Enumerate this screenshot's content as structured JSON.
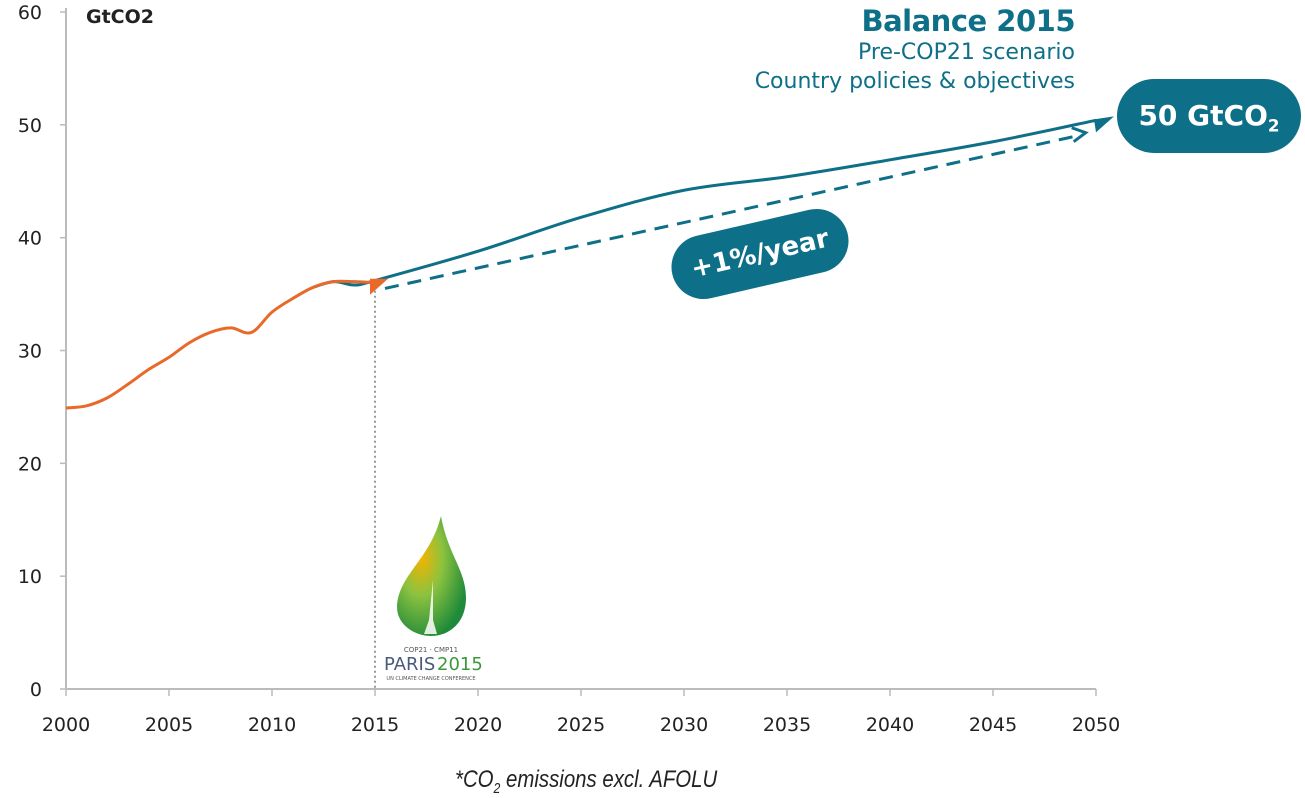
{
  "chart_data": {
    "type": "line",
    "ylabel": "GtCO2",
    "ylim": [
      0,
      60
    ],
    "xlim": [
      2000,
      2050
    ],
    "y_ticks": [
      "0",
      "10",
      "20",
      "30",
      "40",
      "50",
      "60"
    ],
    "x_ticks": [
      "2000",
      "2005",
      "2010",
      "2015",
      "2020",
      "2025",
      "2030",
      "2035",
      "2040",
      "2045",
      "2050"
    ],
    "grid": false,
    "series": [
      {
        "kind": "historical",
        "color": "#e8692a",
        "x": [
          2000,
          2001,
          2002,
          2003,
          2004,
          2005,
          2006,
          2007,
          2008,
          2009,
          2010,
          2011,
          2012,
          2013,
          2014,
          2015
        ],
        "y": [
          24.9,
          25.1,
          25.8,
          27,
          28.3,
          29.4,
          30.7,
          31.6,
          32,
          31.6,
          33.4,
          34.6,
          35.6,
          36.1,
          36.1,
          36
        ]
      },
      {
        "kind": "projection",
        "color": "#0e7088",
        "x": [
          2012,
          2013,
          2014,
          2015,
          2020,
          2025,
          2030,
          2035,
          2040,
          2045,
          2050
        ],
        "y": [
          35.6,
          36.1,
          35.8,
          36.2,
          38.8,
          41.8,
          44.2,
          45.4,
          46.9,
          48.5,
          50.4
        ]
      },
      {
        "kind": "trend-dashed",
        "color": "#0e7088",
        "x": [
          2015,
          2049.5
        ],
        "y": [
          35.5,
          49.3
        ]
      }
    ],
    "marker_year": 2015,
    "title": "Balance 2015",
    "subtitle_lines": [
      "Pre-COP21 scenario",
      "Country policies & objectives"
    ],
    "annotations": {
      "end_value_main": "50 GtCO",
      "end_value_sub": "2",
      "rate": "+1%/year"
    },
    "footnote": {
      "pre": "*CO",
      "sub": "2",
      "post": " emissions excl. AFOLU"
    }
  },
  "logo": {
    "line1": "COP21 · CMP11",
    "word": "PARIS",
    "year": "2015",
    "line3": "UN CLIMATE CHANGE CONFERENCE"
  }
}
